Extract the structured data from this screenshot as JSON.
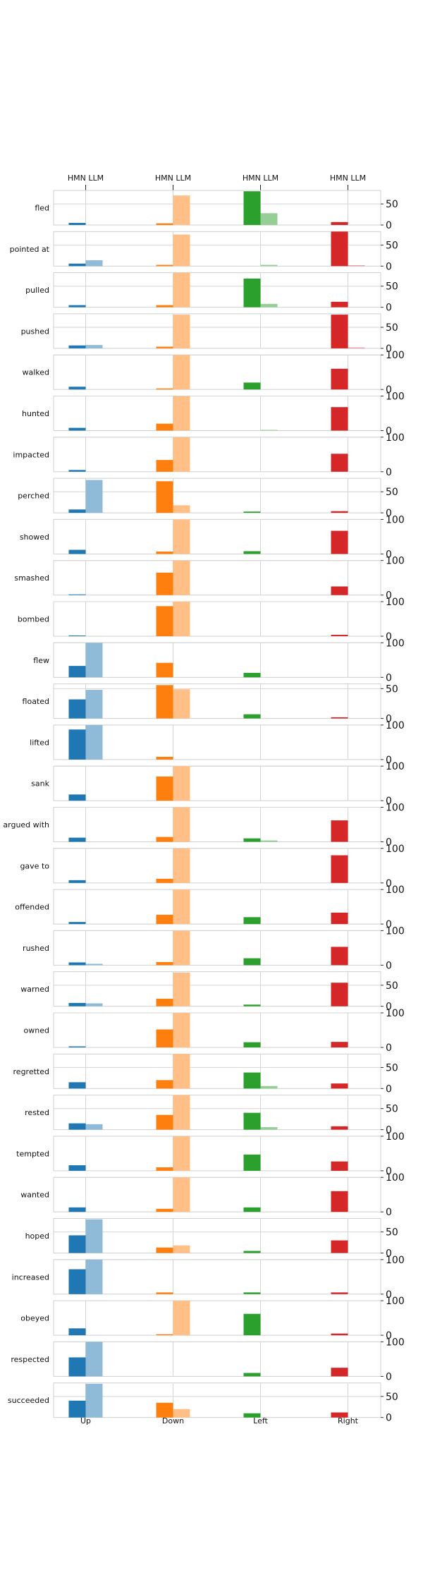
{
  "chart_data": {
    "type": "bar",
    "top_axis_labels": [
      "HMN LLM",
      "HMN LLM",
      "HMN LLM",
      "HMN LLM"
    ],
    "bar_order": [
      "HMN",
      "LLM"
    ],
    "directions": [
      "Up",
      "Down",
      "Left",
      "Right"
    ],
    "grid": true,
    "colors": {
      "Up": {
        "HMN": "#1f77b4",
        "LLM": "#8fbbd9"
      },
      "Down": {
        "HMN": "#ff7f0e",
        "LLM": "#ffbf86"
      },
      "Left": {
        "HMN": "#2ca02c",
        "LLM": "#95cf95"
      },
      "Right": {
        "HMN": "#d62728",
        "LLM": "#ea9293"
      }
    },
    "rows": [
      {
        "verb": "fled",
        "ticks": [
          0,
          50
        ],
        "ylim": [
          0,
          82
        ],
        "values": {
          "Up": [
            5,
            0
          ],
          "Down": [
            4,
            70
          ],
          "Left": [
            80,
            28
          ],
          "Right": [
            7,
            0
          ]
        }
      },
      {
        "verb": "pointed at",
        "ticks": [
          0,
          50
        ],
        "ylim": [
          0,
          82
        ],
        "values": {
          "Up": [
            6,
            14
          ],
          "Down": [
            3,
            75
          ],
          "Left": [
            0,
            3
          ],
          "Right": [
            82,
            2
          ]
        }
      },
      {
        "verb": "pulled",
        "ticks": [
          0,
          50
        ],
        "ylim": [
          0,
          82
        ],
        "values": {
          "Up": [
            5,
            0
          ],
          "Down": [
            5,
            82
          ],
          "Left": [
            68,
            8
          ],
          "Right": [
            13,
            0
          ]
        }
      },
      {
        "verb": "pushed",
        "ticks": [
          0,
          50
        ],
        "ylim": [
          0,
          82
        ],
        "values": {
          "Up": [
            7,
            8
          ],
          "Down": [
            4,
            80
          ],
          "Left": [
            0,
            0
          ],
          "Right": [
            80,
            2
          ]
        }
      },
      {
        "verb": "walked",
        "ticks": [
          0,
          100
        ],
        "ylim": [
          0,
          100
        ],
        "values": {
          "Up": [
            8,
            0
          ],
          "Down": [
            3,
            100
          ],
          "Left": [
            20,
            0
          ],
          "Right": [
            60,
            0
          ]
        }
      },
      {
        "verb": "hunted",
        "ticks": [
          0,
          100
        ],
        "ylim": [
          0,
          100
        ],
        "values": {
          "Up": [
            8,
            0
          ],
          "Down": [
            20,
            100
          ],
          "Left": [
            0,
            2
          ],
          "Right": [
            68,
            0
          ]
        }
      },
      {
        "verb": "impacted",
        "ticks": [
          0,
          100
        ],
        "ylim": [
          0,
          100
        ],
        "values": {
          "Up": [
            5,
            0
          ],
          "Down": [
            34,
            100
          ],
          "Left": [
            0,
            0
          ],
          "Right": [
            52,
            0
          ]
        }
      },
      {
        "verb": "perched",
        "ticks": [
          0,
          50
        ],
        "ylim": [
          0,
          82
        ],
        "values": {
          "Up": [
            8,
            78
          ],
          "Down": [
            75,
            18
          ],
          "Left": [
            3,
            0
          ],
          "Right": [
            4,
            0
          ]
        }
      },
      {
        "verb": "showed",
        "ticks": [
          0,
          100
        ],
        "ylim": [
          0,
          100
        ],
        "values": {
          "Up": [
            12,
            0
          ],
          "Down": [
            7,
            100
          ],
          "Left": [
            8,
            0
          ],
          "Right": [
            67,
            0
          ]
        }
      },
      {
        "verb": "smashed",
        "ticks": [
          0,
          100
        ],
        "ylim": [
          0,
          100
        ],
        "values": {
          "Up": [
            2,
            0
          ],
          "Down": [
            65,
            100
          ],
          "Left": [
            0,
            0
          ],
          "Right": [
            25,
            0
          ]
        }
      },
      {
        "verb": "bombed",
        "ticks": [
          0,
          100
        ],
        "ylim": [
          0,
          100
        ],
        "values": {
          "Up": [
            2,
            0
          ],
          "Down": [
            87,
            100
          ],
          "Left": [
            0,
            0
          ],
          "Right": [
            4,
            0
          ]
        }
      },
      {
        "verb": "flew",
        "ticks": [
          0,
          100
        ],
        "ylim": [
          0,
          100
        ],
        "values": {
          "Up": [
            33,
            100
          ],
          "Down": [
            42,
            0
          ],
          "Left": [
            13,
            0
          ],
          "Right": [
            0,
            0
          ]
        }
      },
      {
        "verb": "floated",
        "ticks": [
          0,
          50
        ],
        "ylim": [
          0,
          58
        ],
        "values": {
          "Up": [
            32,
            48
          ],
          "Down": [
            56,
            49
          ],
          "Left": [
            7,
            0
          ],
          "Right": [
            2,
            0
          ]
        }
      },
      {
        "verb": "lifted",
        "ticks": [
          0,
          100
        ],
        "ylim": [
          0,
          100
        ],
        "values": {
          "Up": [
            87,
            100
          ],
          "Down": [
            8,
            0
          ],
          "Left": [
            0,
            0
          ],
          "Right": [
            0,
            0
          ]
        }
      },
      {
        "verb": "sank",
        "ticks": [
          0,
          100
        ],
        "ylim": [
          0,
          100
        ],
        "values": {
          "Up": [
            18,
            0
          ],
          "Down": [
            70,
            100
          ],
          "Left": [
            0,
            0
          ],
          "Right": [
            0,
            0
          ]
        }
      },
      {
        "verb": "argued with",
        "ticks": [
          0,
          100
        ],
        "ylim": [
          0,
          100
        ],
        "values": {
          "Up": [
            12,
            0
          ],
          "Down": [
            14,
            100
          ],
          "Left": [
            10,
            4
          ],
          "Right": [
            62,
            0
          ]
        }
      },
      {
        "verb": "gave to",
        "ticks": [
          0,
          100
        ],
        "ylim": [
          0,
          100
        ],
        "values": {
          "Up": [
            8,
            0
          ],
          "Down": [
            12,
            100
          ],
          "Left": [
            0,
            0
          ],
          "Right": [
            80,
            0
          ]
        }
      },
      {
        "verb": "offended",
        "ticks": [
          0,
          100
        ],
        "ylim": [
          0,
          100
        ],
        "values": {
          "Up": [
            6,
            0
          ],
          "Down": [
            27,
            100
          ],
          "Left": [
            20,
            0
          ],
          "Right": [
            33,
            0
          ]
        }
      },
      {
        "verb": "rushed",
        "ticks": [
          0,
          100
        ],
        "ylim": [
          0,
          100
        ],
        "values": {
          "Up": [
            8,
            4
          ],
          "Down": [
            9,
            100
          ],
          "Left": [
            20,
            0
          ],
          "Right": [
            53,
            0
          ]
        }
      },
      {
        "verb": "warned",
        "ticks": [
          0,
          50
        ],
        "ylim": [
          0,
          82
        ],
        "values": {
          "Up": [
            8,
            7
          ],
          "Down": [
            18,
            80
          ],
          "Left": [
            4,
            0
          ],
          "Right": [
            56,
            0
          ]
        }
      },
      {
        "verb": "owned",
        "ticks": [
          0,
          100
        ],
        "ylim": [
          0,
          100
        ],
        "values": {
          "Up": [
            3,
            0
          ],
          "Down": [
            52,
            100
          ],
          "Left": [
            15,
            0
          ],
          "Right": [
            16,
            0
          ]
        }
      },
      {
        "verb": "regretted",
        "ticks": [
          0,
          50
        ],
        "ylim": [
          0,
          82
        ],
        "values": {
          "Up": [
            15,
            0
          ],
          "Down": [
            20,
            82
          ],
          "Left": [
            38,
            6
          ],
          "Right": [
            12,
            0
          ]
        }
      },
      {
        "verb": "rested",
        "ticks": [
          0,
          50
        ],
        "ylim": [
          0,
          82
        ],
        "values": {
          "Up": [
            15,
            13
          ],
          "Down": [
            35,
            82
          ],
          "Left": [
            40,
            6
          ],
          "Right": [
            8,
            0
          ]
        }
      },
      {
        "verb": "tempted",
        "ticks": [
          0,
          100
        ],
        "ylim": [
          0,
          100
        ],
        "values": {
          "Up": [
            16,
            0
          ],
          "Down": [
            10,
            100
          ],
          "Left": [
            47,
            0
          ],
          "Right": [
            27,
            0
          ]
        }
      },
      {
        "verb": "wanted",
        "ticks": [
          0,
          100
        ],
        "ylim": [
          0,
          100
        ],
        "values": {
          "Up": [
            13,
            0
          ],
          "Down": [
            9,
            100
          ],
          "Left": [
            13,
            0
          ],
          "Right": [
            60,
            0
          ]
        }
      },
      {
        "verb": "hoped",
        "ticks": [
          0,
          50
        ],
        "ylim": [
          0,
          82
        ],
        "values": {
          "Up": [
            42,
            80
          ],
          "Down": [
            13,
            18
          ],
          "Left": [
            5,
            0
          ],
          "Right": [
            30,
            0
          ]
        }
      },
      {
        "verb": "increased",
        "ticks": [
          0,
          100
        ],
        "ylim": [
          0,
          100
        ],
        "values": {
          "Up": [
            72,
            100
          ],
          "Down": [
            5,
            0
          ],
          "Left": [
            5,
            0
          ],
          "Right": [
            5,
            0
          ]
        }
      },
      {
        "verb": "obeyed",
        "ticks": [
          0,
          100
        ],
        "ylim": [
          0,
          100
        ],
        "values": {
          "Up": [
            20,
            0
          ],
          "Down": [
            3,
            100
          ],
          "Left": [
            62,
            0
          ],
          "Right": [
            5,
            0
          ]
        }
      },
      {
        "verb": "respected",
        "ticks": [
          0,
          100
        ],
        "ylim": [
          0,
          100
        ],
        "values": {
          "Up": [
            55,
            100
          ],
          "Down": [
            0,
            0
          ],
          "Left": [
            10,
            0
          ],
          "Right": [
            25,
            0
          ]
        }
      },
      {
        "verb": "succeeded",
        "ticks": [
          0,
          50
        ],
        "ylim": [
          0,
          82
        ],
        "values": {
          "Up": [
            40,
            80
          ],
          "Down": [
            35,
            20
          ],
          "Left": [
            10,
            0
          ],
          "Right": [
            12,
            0
          ]
        }
      }
    ]
  }
}
